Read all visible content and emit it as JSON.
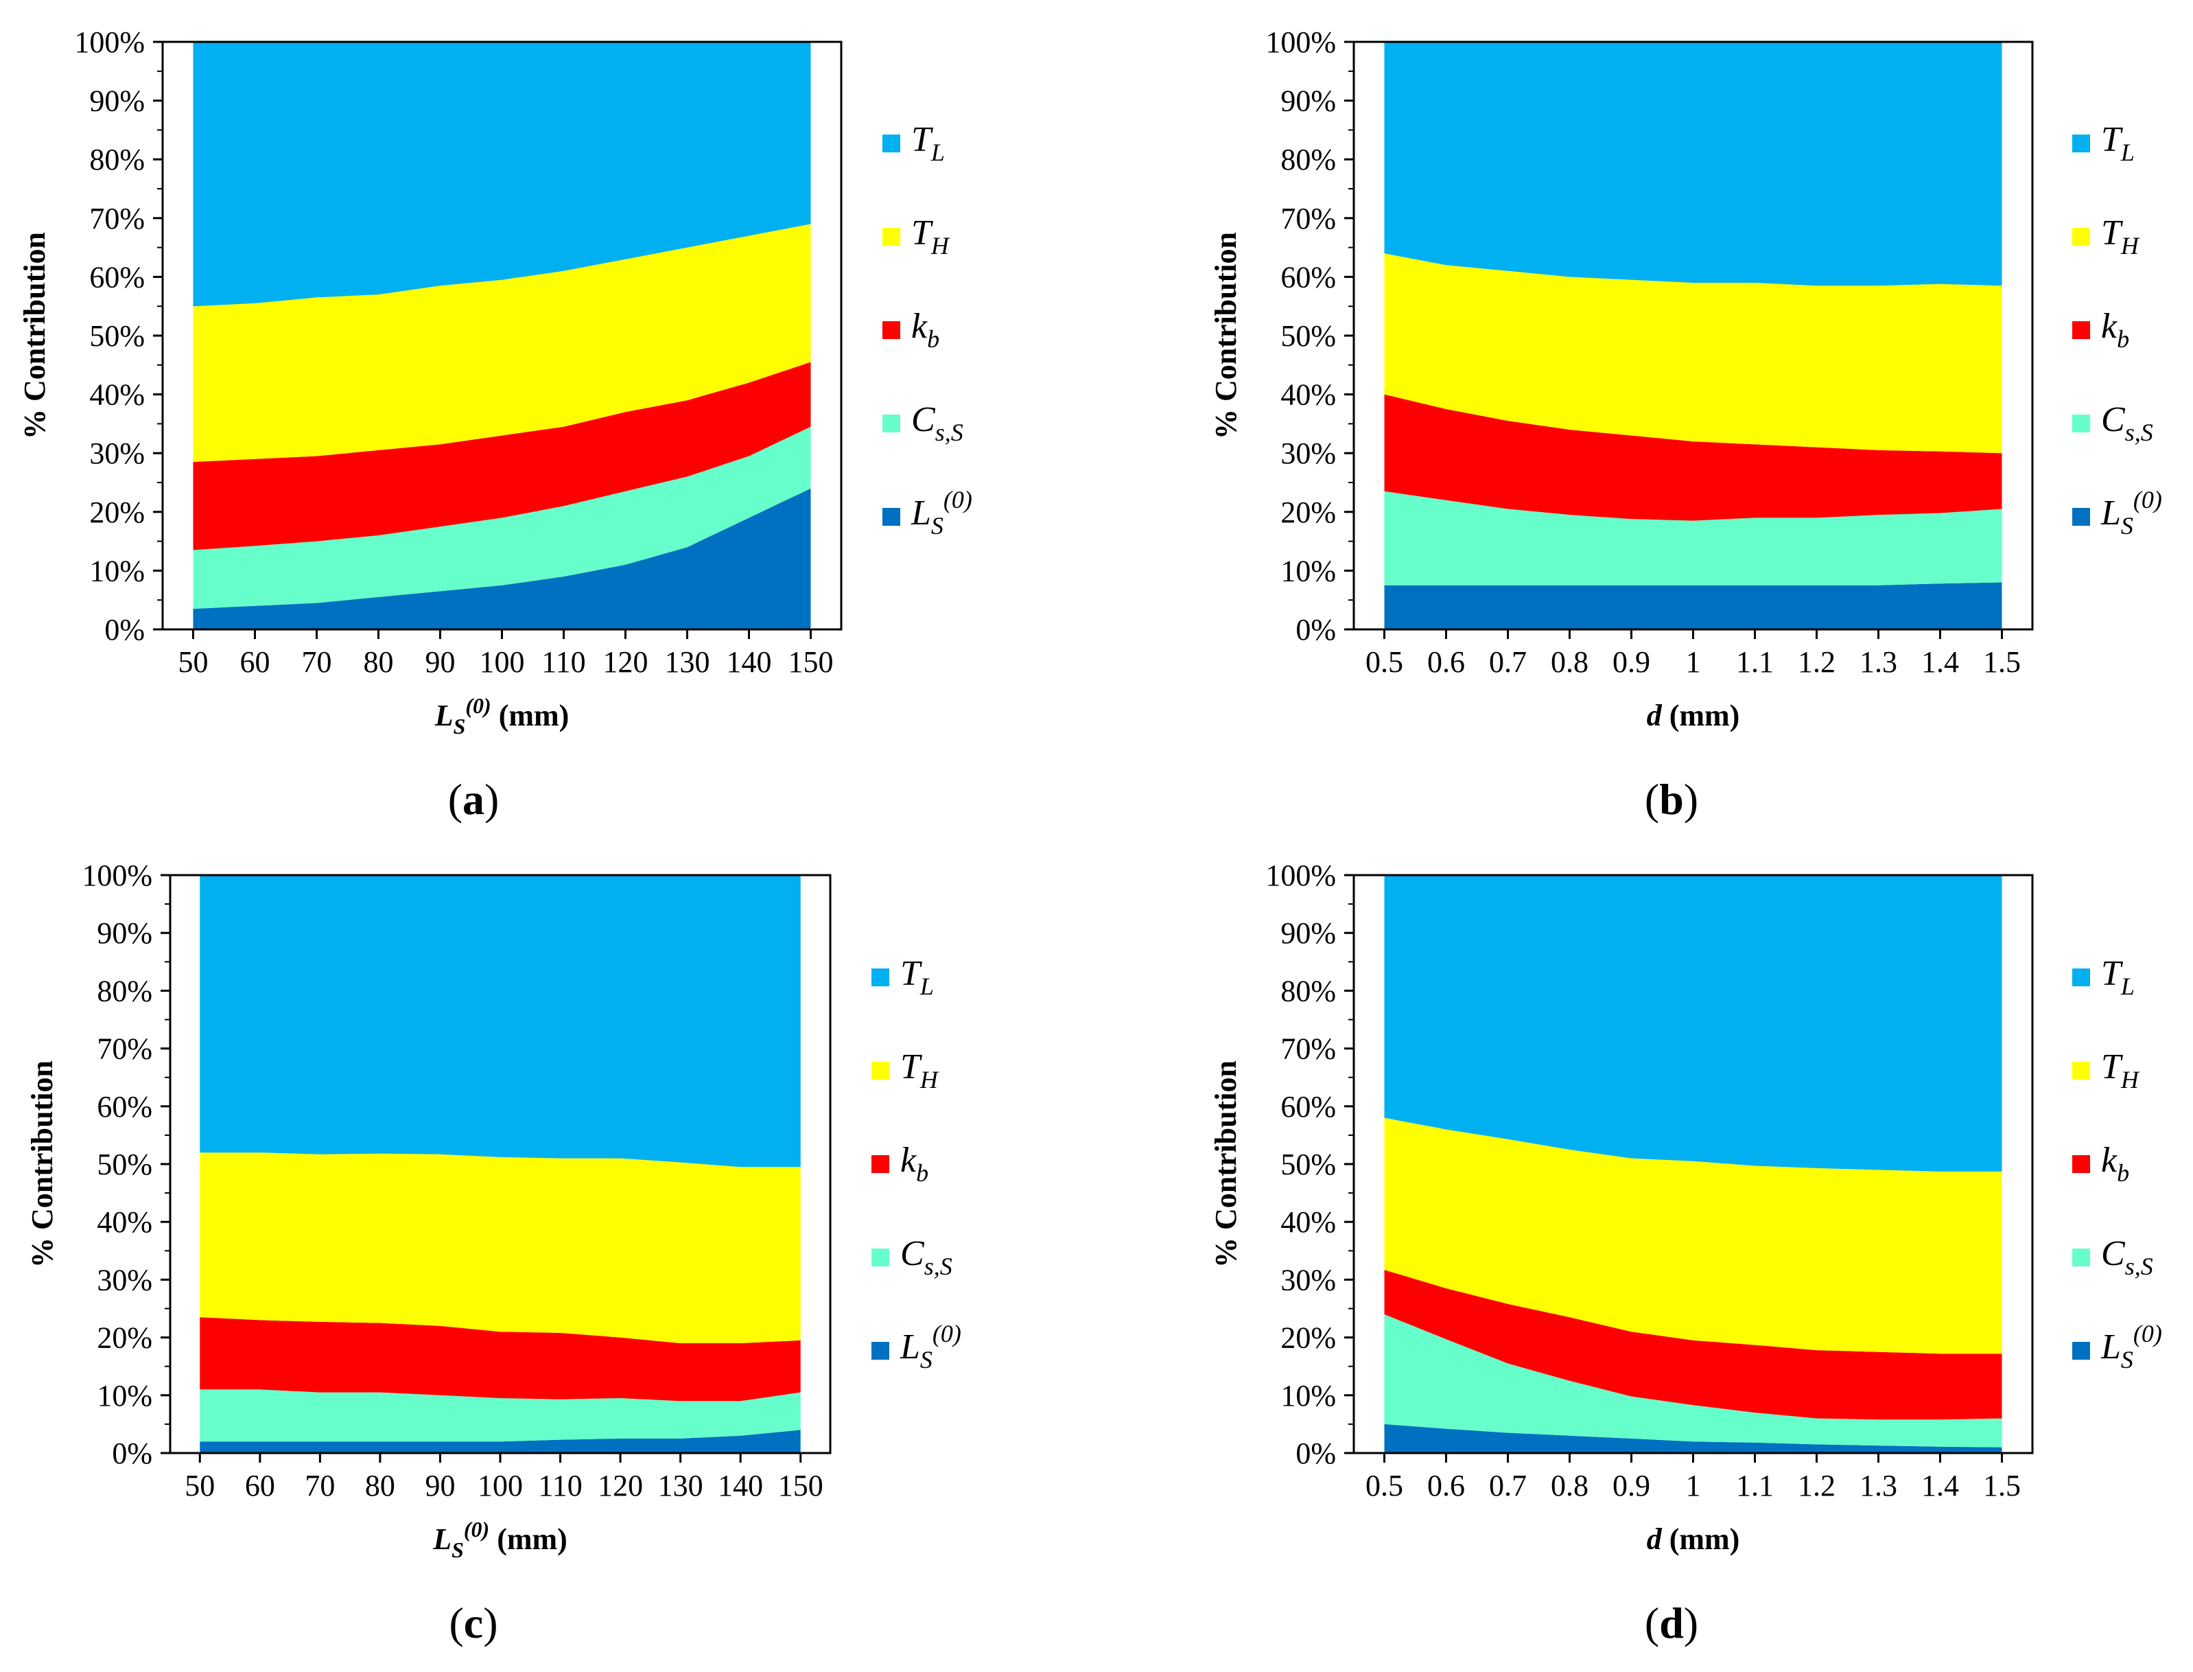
{
  "colors": {
    "T_L": "#00b0f0",
    "T_H": "#ffff00",
    "k_b": "#ff0000",
    "C_sS": "#66ffcc",
    "L_S0": "#0070c0"
  },
  "legend_entries": [
    {
      "key": "T_L",
      "main": "T",
      "sub": "L",
      "sup": ""
    },
    {
      "key": "T_H",
      "main": "T",
      "sub": "H",
      "sup": ""
    },
    {
      "key": "k_b",
      "main": "k",
      "sub": "b",
      "sup": ""
    },
    {
      "key": "C_sS",
      "main": "C",
      "sub": "s,S",
      "sup": ""
    },
    {
      "key": "L_S0",
      "main": "L",
      "sub": "S",
      "sup": "(0)"
    }
  ],
  "y_tick_labels": [
    "0%",
    "10%",
    "20%",
    "30%",
    "40%",
    "50%",
    "60%",
    "70%",
    "80%",
    "90%",
    "100%"
  ],
  "chart_data": [
    {
      "type": "area",
      "panel_label": "a",
      "ylabel": "% Contribution",
      "xlabel": {
        "main": "L",
        "sub": "S",
        "sup": "(0)",
        "unit": " (mm)"
      },
      "x": [
        50,
        60,
        70,
        80,
        90,
        100,
        110,
        120,
        130,
        140,
        150
      ],
      "x_tick_labels": [
        "50",
        "60",
        "70",
        "80",
        "90",
        "100",
        "110",
        "120",
        "130",
        "140",
        "150"
      ],
      "ylim": [
        0,
        100
      ],
      "stacked": true,
      "series": [
        {
          "name": "L_S0",
          "values": [
            3.5,
            4,
            4.5,
            5.5,
            6.5,
            7.5,
            9,
            11,
            14,
            19,
            24
          ]
        },
        {
          "name": "C_sS",
          "values": [
            10,
            10.2,
            10.5,
            10.5,
            11,
            11.5,
            12,
            12.5,
            12,
            10.5,
            10.5
          ]
        },
        {
          "name": "k_b",
          "values": [
            15,
            14.8,
            14.5,
            14.5,
            14,
            14,
            13.5,
            13.5,
            13,
            12.5,
            11
          ]
        },
        {
          "name": "T_H",
          "values": [
            26.5,
            26.5,
            27,
            26.5,
            27,
            26.5,
            26.5,
            26,
            26,
            25,
            23.5
          ]
        },
        {
          "name": "T_L",
          "values": [
            45,
            44.5,
            43.5,
            43,
            41.5,
            40.5,
            39,
            37,
            35,
            33,
            31
          ]
        }
      ]
    },
    {
      "type": "area",
      "panel_label": "b",
      "ylabel": "% Contribution",
      "xlabel": {
        "main": "d",
        "sub": "",
        "sup": "",
        "unit": " (mm)"
      },
      "x": [
        0.5,
        0.6,
        0.7,
        0.8,
        0.9,
        1.0,
        1.1,
        1.2,
        1.3,
        1.4,
        1.5
      ],
      "x_tick_labels": [
        "0.5",
        "0.6",
        "0.7",
        "0.8",
        "0.9",
        "1",
        "1.1",
        "1.2",
        "1.3",
        "1.4",
        "1.5"
      ],
      "ylim": [
        0,
        100
      ],
      "stacked": true,
      "series": [
        {
          "name": "L_S0",
          "values": [
            7.5,
            7.5,
            7.5,
            7.5,
            7.5,
            7.5,
            7.5,
            7.5,
            7.5,
            7.8,
            8
          ]
        },
        {
          "name": "C_sS",
          "values": [
            16,
            14.5,
            13,
            12,
            11.3,
            11,
            11.5,
            11.5,
            12,
            12,
            12.5
          ]
        },
        {
          "name": "k_b",
          "values": [
            16.5,
            15.5,
            15,
            14.5,
            14.2,
            13.5,
            12.5,
            12,
            11,
            10.5,
            9.5
          ]
        },
        {
          "name": "T_H",
          "values": [
            24,
            24.5,
            25.5,
            26,
            26.5,
            27,
            27.5,
            27.5,
            28,
            28.5,
            28.5
          ]
        },
        {
          "name": "T_L",
          "values": [
            36,
            38,
            39,
            40,
            40.5,
            41,
            41,
            41.5,
            41.5,
            41.2,
            41.5
          ]
        }
      ]
    },
    {
      "type": "area",
      "panel_label": "c",
      "ylabel": "% Contribution",
      "xlabel": {
        "main": "L",
        "sub": "S",
        "sup": "(0)",
        "unit": " (mm)"
      },
      "x": [
        50,
        60,
        70,
        80,
        90,
        100,
        110,
        120,
        130,
        140,
        150
      ],
      "x_tick_labels": [
        "50",
        "60",
        "70",
        "80",
        "90",
        "100",
        "110",
        "120",
        "130",
        "140",
        "150"
      ],
      "ylim": [
        0,
        100
      ],
      "stacked": true,
      "series": [
        {
          "name": "L_S0",
          "values": [
            2,
            2,
            2,
            2,
            2,
            2,
            2.3,
            2.5,
            2.5,
            3,
            4
          ]
        },
        {
          "name": "C_sS",
          "values": [
            9,
            9,
            8.5,
            8.5,
            8,
            7.5,
            7,
            7,
            6.5,
            6,
            6.5
          ]
        },
        {
          "name": "k_b",
          "values": [
            12.5,
            12,
            12.2,
            12,
            12,
            11.5,
            11.5,
            10.5,
            10,
            10,
            9
          ]
        },
        {
          "name": "T_H",
          "values": [
            28.5,
            29,
            29,
            29.3,
            29.7,
            30.2,
            30.2,
            31,
            31.3,
            30.5,
            30
          ]
        },
        {
          "name": "T_L",
          "values": [
            48,
            48,
            48.3,
            48.2,
            48.3,
            48.8,
            49,
            49,
            49.7,
            50.5,
            50.5
          ]
        }
      ]
    },
    {
      "type": "area",
      "panel_label": "d",
      "ylabel": "% Contribution",
      "xlabel": {
        "main": "d",
        "sub": "",
        "sup": "",
        "unit": " (mm)"
      },
      "x": [
        0.5,
        0.6,
        0.7,
        0.8,
        0.9,
        1.0,
        1.1,
        1.2,
        1.3,
        1.4,
        1.5
      ],
      "x_tick_labels": [
        "0.5",
        "0.6",
        "0.7",
        "0.8",
        "0.9",
        "1",
        "1.1",
        "1.2",
        "1.3",
        "1.4",
        "1.5"
      ],
      "ylim": [
        0,
        100
      ],
      "stacked": true,
      "series": [
        {
          "name": "L_S0",
          "values": [
            5,
            4.2,
            3.5,
            3,
            2.5,
            2,
            1.8,
            1.5,
            1.3,
            1.1,
            1
          ]
        },
        {
          "name": "C_sS",
          "values": [
            19,
            15.5,
            12,
            9.5,
            7.3,
            6.3,
            5.2,
            4.5,
            4.5,
            4.7,
            5
          ]
        },
        {
          "name": "k_b",
          "values": [
            7.7,
            8.8,
            10.3,
            11,
            11.2,
            11.2,
            11.7,
            11.8,
            11.7,
            11.4,
            11.2
          ]
        },
        {
          "name": "T_H",
          "values": [
            26.3,
            27.5,
            28.5,
            29,
            30,
            31,
            31,
            31.5,
            31.5,
            31.5,
            31.5
          ]
        },
        {
          "name": "T_L",
          "values": [
            42,
            44,
            45.7,
            47.5,
            49,
            49.5,
            50.3,
            50.7,
            51,
            51.3,
            51.3
          ]
        }
      ]
    }
  ]
}
